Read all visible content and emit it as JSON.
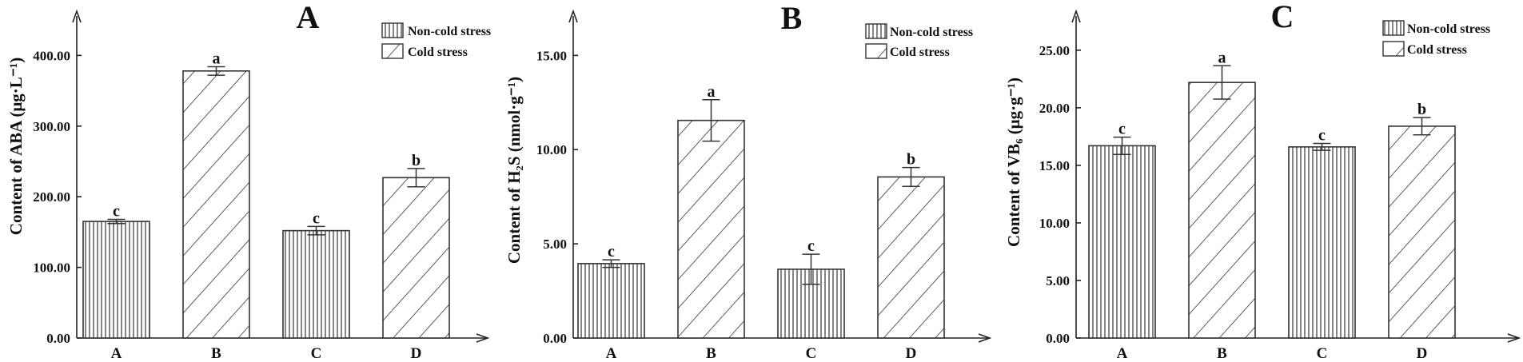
{
  "legend": {
    "non_cold": "Non-cold stress",
    "cold": "Cold stress"
  },
  "chart_data": [
    {
      "type": "bar",
      "panel": "A",
      "title": "A",
      "ylabel": "Content of ABA  (μg·L⁻¹)",
      "categories": [
        "A",
        "B",
        "C",
        "D"
      ],
      "treatments": [
        "Non-cold stress",
        "Cold stress",
        "Non-cold stress",
        "Cold stress"
      ],
      "values": [
        165,
        378,
        152,
        227
      ],
      "errors": [
        3,
        6,
        6,
        13
      ],
      "significance": [
        "c",
        "a",
        "c",
        "b"
      ],
      "ylim": [
        0,
        440
      ],
      "yticks": [
        0,
        100,
        200,
        300,
        400
      ],
      "ytick_labels": [
        "0.00",
        "100.00",
        "200.00",
        "300.00",
        "400.00"
      ],
      "grid": false
    },
    {
      "type": "bar",
      "panel": "B",
      "title": "B",
      "ylabel": "Content of H₂S  (nmol·g⁻¹)",
      "categories": [
        "A",
        "B",
        "C",
        "D"
      ],
      "treatments": [
        "Non-cold stress",
        "Cold stress",
        "Non-cold stress",
        "Cold stress"
      ],
      "values": [
        3.95,
        11.55,
        3.65,
        8.55
      ],
      "errors": [
        0.2,
        1.1,
        0.8,
        0.5
      ],
      "significance": [
        "c",
        "a",
        "c",
        "b"
      ],
      "ylim": [
        0,
        16.5
      ],
      "yticks": [
        0,
        5,
        10,
        15
      ],
      "ytick_labels": [
        "0.00",
        "5.00",
        "10.00",
        "15.00"
      ],
      "grid": false
    },
    {
      "type": "bar",
      "panel": "C",
      "title": "C",
      "ylabel": "Content of VB₆  (μg·g⁻¹)",
      "categories": [
        "A",
        "B",
        "C",
        "D"
      ],
      "treatments": [
        "Non-cold stress",
        "Cold stress",
        "Non-cold stress",
        "Cold stress"
      ],
      "values": [
        16.7,
        22.2,
        16.6,
        18.4
      ],
      "errors": [
        0.75,
        1.45,
        0.3,
        0.75
      ],
      "significance": [
        "c",
        "a",
        "c",
        "b"
      ],
      "ylim": [
        0,
        27
      ],
      "yticks": [
        0,
        5,
        10,
        15,
        20,
        25
      ],
      "ytick_labels": [
        "0.00",
        "5.00",
        "10.00",
        "15.00",
        "20.00",
        "25.00"
      ],
      "grid": false
    }
  ]
}
